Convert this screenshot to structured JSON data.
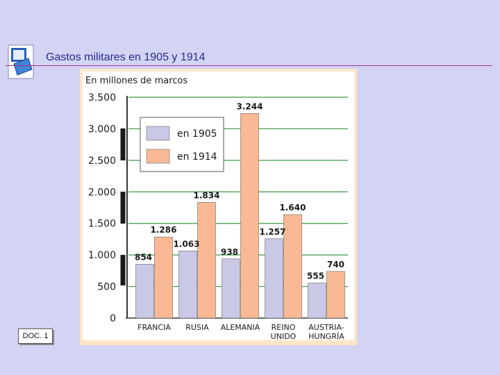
{
  "slide": {
    "title": "Gastos militares en 1905 y 1914",
    "doc_label": "DOC. 1",
    "logo_icon": "slides-logo-icon"
  },
  "chart_data": {
    "type": "bar",
    "title": "",
    "ylabel": "En millones de marcos",
    "xlabel": "",
    "ylim": [
      0,
      3500
    ],
    "yticks": [
      0,
      500,
      1000,
      1500,
      2000,
      2500,
      3000,
      3500
    ],
    "ytick_labels": [
      "0",
      "500",
      "1.000",
      "1.500",
      "2.000",
      "2.500",
      "3.000",
      "3.500"
    ],
    "grid": true,
    "legend_position": "top-left",
    "categories": [
      [
        "FRANCIA"
      ],
      [
        "RUSIA"
      ],
      [
        "ALEMANIA"
      ],
      [
        "REINO",
        "UNIDO"
      ],
      [
        "AUSTRIA-",
        "HUNGRÍA"
      ]
    ],
    "series": [
      {
        "name": "en 1905",
        "color": "#c9c8e6",
        "values": [
          854,
          1063,
          938,
          1257,
          555
        ],
        "labels": [
          "854",
          "1.063",
          "938",
          "1.257",
          "555"
        ]
      },
      {
        "name": "en 1914",
        "color": "#f9b994",
        "values": [
          1286,
          1834,
          3244,
          1640,
          740
        ],
        "labels": [
          "1.286",
          "1.834",
          "3.244",
          "1.640",
          "740"
        ]
      }
    ],
    "colors": {
      "panel": "#ffffff",
      "gridline": "#3a9a46",
      "axis": "#333333",
      "text": "#1a1a1a",
      "figure_background": "#fde6c8"
    }
  }
}
